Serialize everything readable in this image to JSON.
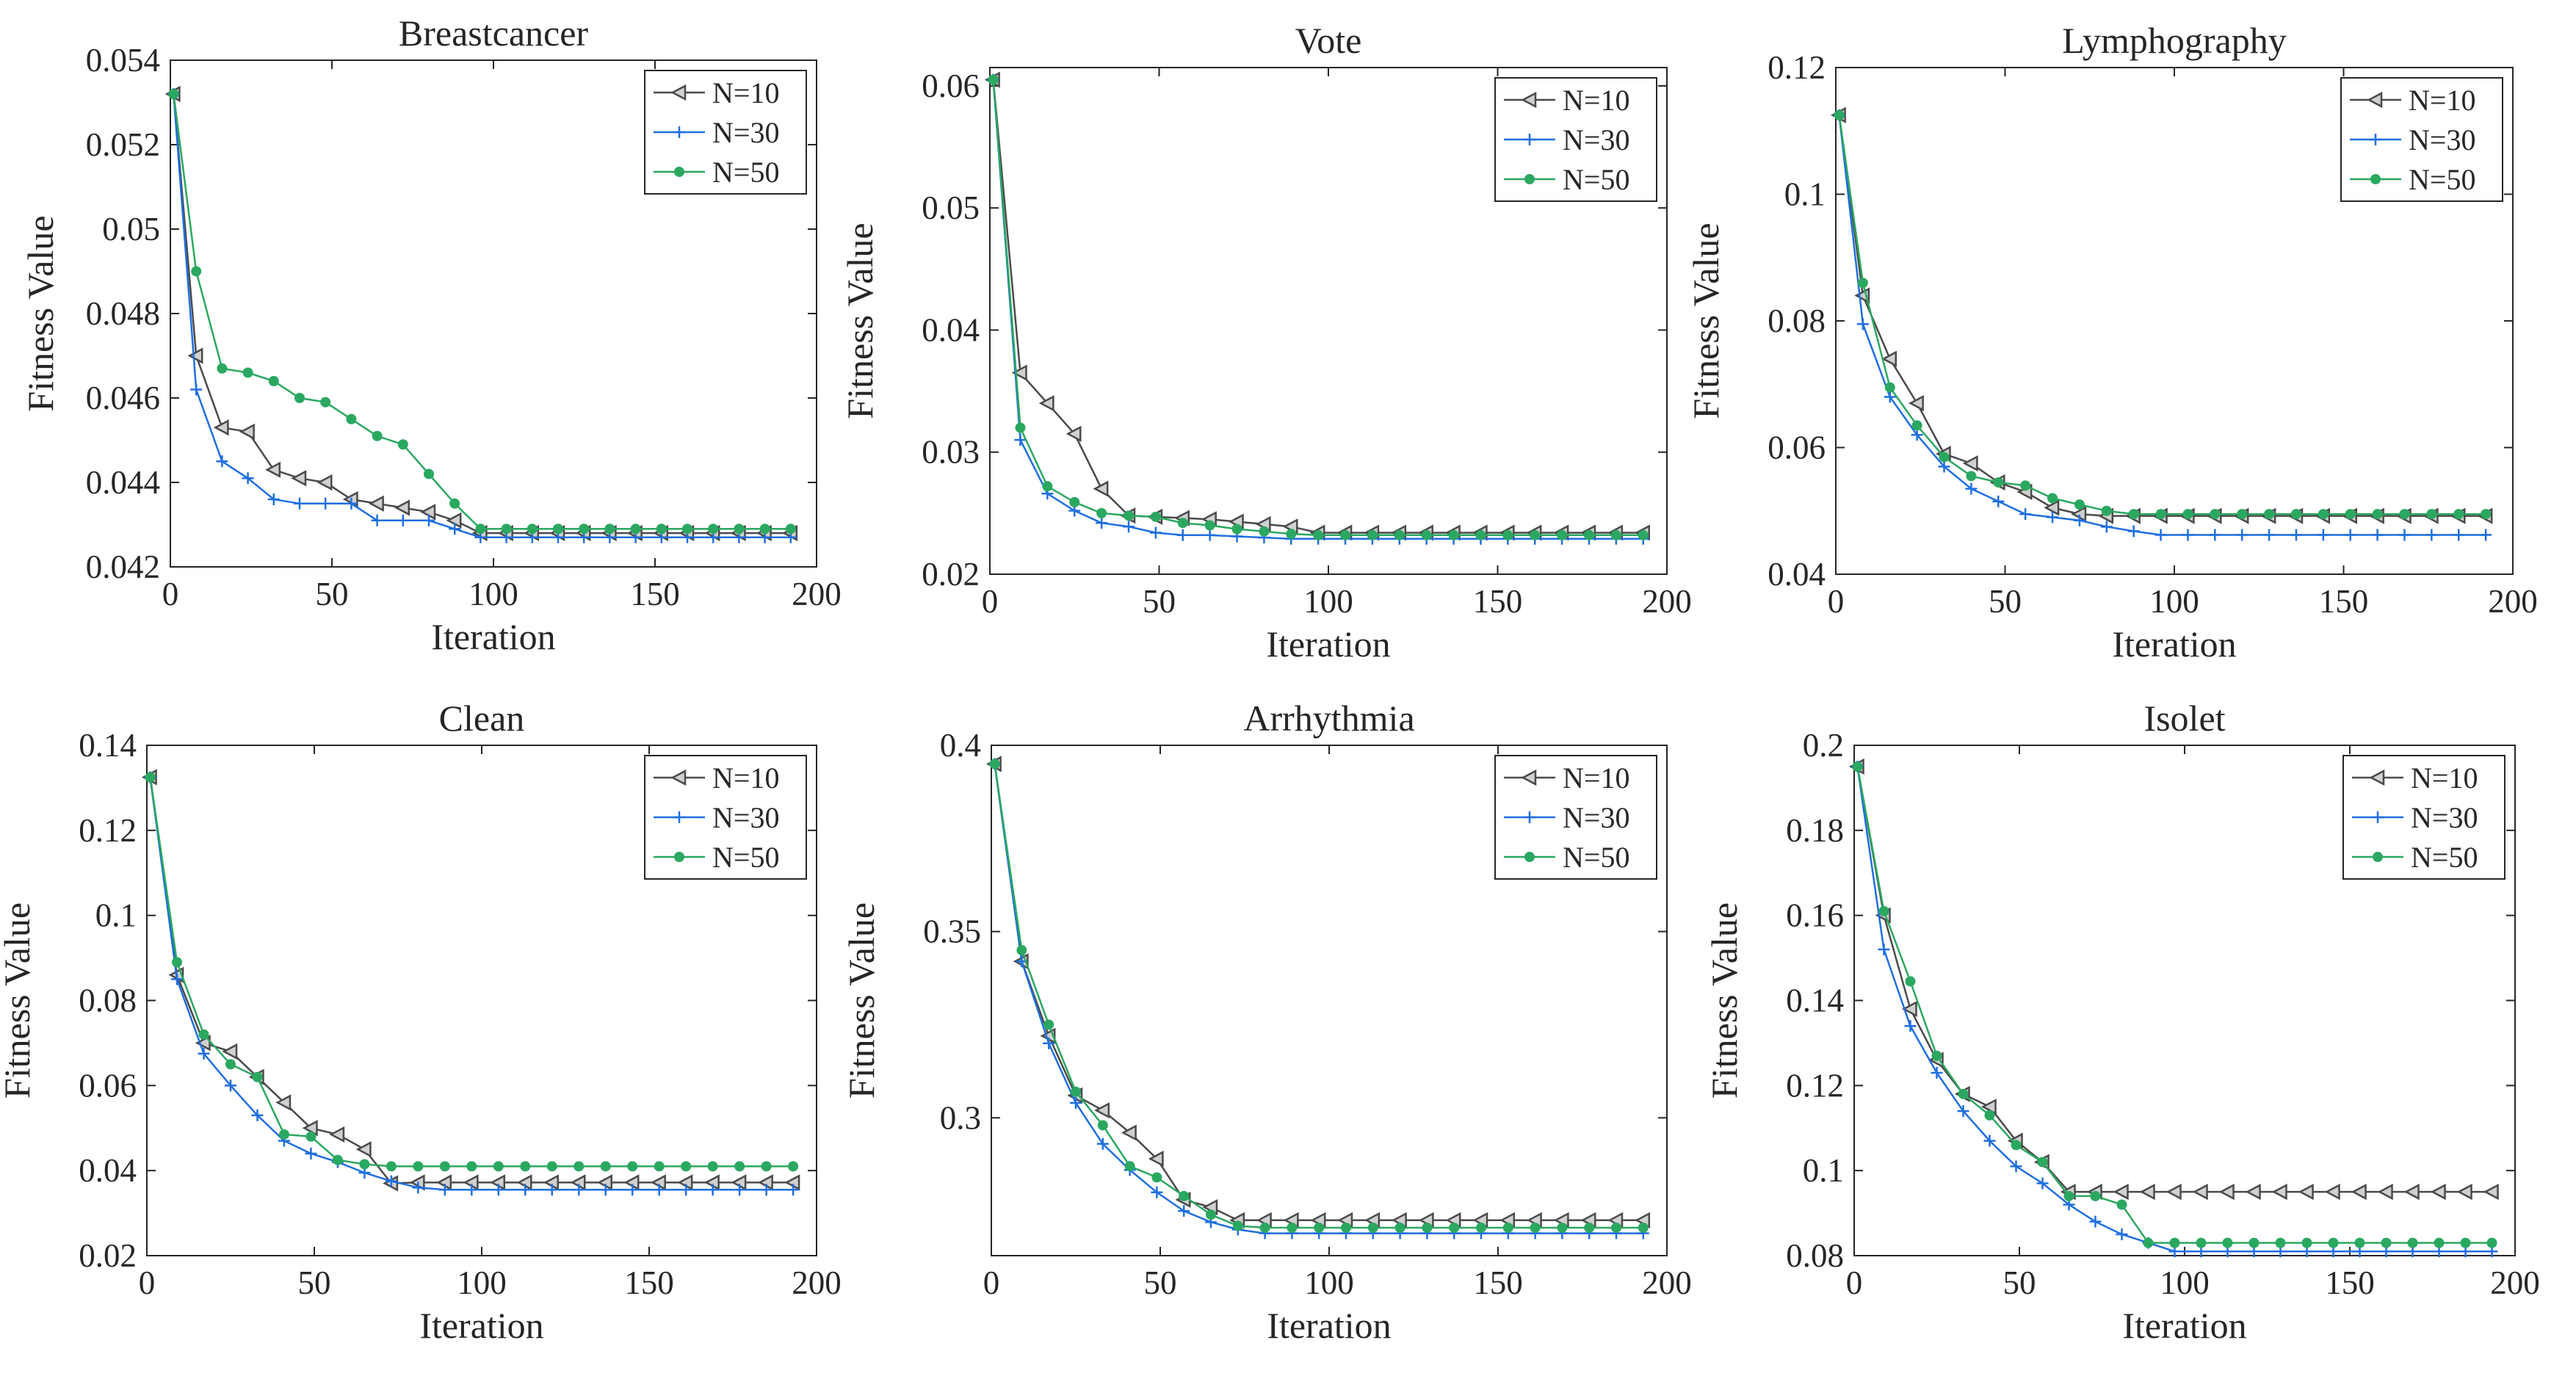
{
  "figure": {
    "layout": "2x3 grid of line charts"
  },
  "legend_position": "top-right",
  "series_styles": [
    {
      "name": "N=10",
      "color": "#4a4a4a",
      "marker": "triangle-left"
    },
    {
      "name": "N=30",
      "color": "#1f6fe0",
      "marker": "plus"
    },
    {
      "name": "N=50",
      "color": "#2aa860",
      "marker": "dot"
    }
  ],
  "chart_data": [
    {
      "type": "line",
      "title": "Breastcancer",
      "xlabel": "Iteration",
      "ylabel": "Fitness Value",
      "xlim": [
        0,
        200
      ],
      "ylim": [
        0.042,
        0.054
      ],
      "xticks": [
        0,
        50,
        100,
        150,
        200
      ],
      "xtick_labels": [
        "0",
        "50",
        "100",
        "150",
        "200"
      ],
      "yticks": [
        0.042,
        0.044,
        0.046,
        0.048,
        0.05,
        0.052,
        0.054
      ],
      "ytick_labels": [
        "0.042",
        "0.044",
        "0.046",
        "0.048",
        "0.05",
        "0.052",
        "0.054"
      ],
      "grid": false,
      "x": [
        1,
        8,
        16,
        24,
        32,
        40,
        48,
        56,
        64,
        72,
        80,
        88,
        96,
        104,
        112,
        120,
        128,
        136,
        144,
        152,
        160,
        168,
        176,
        184,
        192
      ],
      "series": [
        {
          "name": "N=10",
          "values": [
            0.0532,
            0.047,
            0.0453,
            0.0452,
            0.0443,
            0.0441,
            0.044,
            0.0436,
            0.0435,
            0.0434,
            0.0433,
            0.0431,
            0.0428,
            0.0428,
            0.0428,
            0.0428,
            0.0428,
            0.0428,
            0.0428,
            0.0428,
            0.0428,
            0.0428,
            0.0428,
            0.0428,
            0.0428
          ]
        },
        {
          "name": "N=30",
          "values": [
            0.0532,
            0.0462,
            0.0445,
            0.0441,
            0.0436,
            0.0435,
            0.0435,
            0.0435,
            0.0431,
            0.0431,
            0.0431,
            0.0429,
            0.0427,
            0.0427,
            0.0427,
            0.0427,
            0.0427,
            0.0427,
            0.0427,
            0.0427,
            0.0427,
            0.0427,
            0.0427,
            0.0427,
            0.0427
          ]
        },
        {
          "name": "N=50",
          "values": [
            0.0532,
            0.049,
            0.0467,
            0.0466,
            0.0464,
            0.046,
            0.0459,
            0.0455,
            0.0451,
            0.0449,
            0.0442,
            0.0435,
            0.0429,
            0.0429,
            0.0429,
            0.0429,
            0.0429,
            0.0429,
            0.0429,
            0.0429,
            0.0429,
            0.0429,
            0.0429,
            0.0429,
            0.0429
          ]
        }
      ]
    },
    {
      "type": "line",
      "title": "Vote",
      "xlabel": "Iteration",
      "ylabel": "Fitness Value",
      "xlim": [
        0,
        200
      ],
      "ylim": [
        0.02,
        0.0615
      ],
      "xticks": [
        0,
        50,
        100,
        150,
        200
      ],
      "xtick_labels": [
        "0",
        "50",
        "100",
        "150",
        "200"
      ],
      "yticks": [
        0.02,
        0.03,
        0.04,
        0.05,
        0.06
      ],
      "ytick_labels": [
        "0.02",
        "0.03",
        "0.04",
        "0.05",
        "0.06"
      ],
      "grid": false,
      "x": [
        1,
        9,
        17,
        25,
        33,
        41,
        49,
        57,
        65,
        73,
        81,
        89,
        97,
        105,
        113,
        121,
        129,
        137,
        145,
        153,
        161,
        169,
        177,
        185,
        193
      ],
      "series": [
        {
          "name": "N=10",
          "values": [
            0.0605,
            0.0365,
            0.034,
            0.0315,
            0.027,
            0.0248,
            0.0247,
            0.0246,
            0.0245,
            0.0243,
            0.0241,
            0.0239,
            0.0234,
            0.0234,
            0.0234,
            0.0234,
            0.0234,
            0.0234,
            0.0234,
            0.0234,
            0.0234,
            0.0234,
            0.0234,
            0.0234,
            0.0234
          ]
        },
        {
          "name": "N=30",
          "values": [
            0.0605,
            0.031,
            0.0266,
            0.0252,
            0.0242,
            0.0239,
            0.0234,
            0.0232,
            0.0232,
            0.0231,
            0.023,
            0.0229,
            0.0229,
            0.0229,
            0.0229,
            0.0229,
            0.0229,
            0.0229,
            0.0229,
            0.0229,
            0.0229,
            0.0229,
            0.0229,
            0.0229,
            0.0229
          ]
        },
        {
          "name": "N=50",
          "values": [
            0.0605,
            0.032,
            0.0272,
            0.0259,
            0.025,
            0.0248,
            0.0247,
            0.0242,
            0.024,
            0.0237,
            0.0235,
            0.0233,
            0.0232,
            0.0232,
            0.0232,
            0.0232,
            0.0232,
            0.0232,
            0.0232,
            0.0232,
            0.0232,
            0.0232,
            0.0232,
            0.0232,
            0.0232
          ]
        }
      ]
    },
    {
      "type": "line",
      "title": "Lymphography",
      "xlabel": "Iteration",
      "ylabel": "Fitness Value",
      "xlim": [
        0,
        200
      ],
      "ylim": [
        0.04,
        0.12
      ],
      "xticks": [
        0,
        50,
        100,
        150,
        200
      ],
      "xtick_labels": [
        "0",
        "50",
        "100",
        "150",
        "200"
      ],
      "yticks": [
        0.04,
        0.06,
        0.08,
        0.1,
        0.12
      ],
      "ytick_labels": [
        "0.04",
        "0.06",
        "0.08",
        "0.1",
        "0.12"
      ],
      "grid": false,
      "x": [
        1,
        8,
        16,
        24,
        32,
        40,
        48,
        56,
        64,
        72,
        80,
        88,
        96,
        104,
        112,
        120,
        128,
        136,
        144,
        152,
        160,
        168,
        176,
        184,
        192
      ],
      "series": [
        {
          "name": "N=10",
          "values": [
            0.1125,
            0.084,
            0.074,
            0.067,
            0.059,
            0.0575,
            0.0545,
            0.053,
            0.0505,
            0.0495,
            0.0492,
            0.0492,
            0.0492,
            0.0492,
            0.0492,
            0.0492,
            0.0492,
            0.0492,
            0.0492,
            0.0492,
            0.0492,
            0.0492,
            0.0492,
            0.0492,
            0.0492
          ]
        },
        {
          "name": "N=30",
          "values": [
            0.1125,
            0.0795,
            0.068,
            0.062,
            0.057,
            0.0535,
            0.0515,
            0.0495,
            0.049,
            0.0485,
            0.0475,
            0.0468,
            0.0462,
            0.0462,
            0.0462,
            0.0462,
            0.0462,
            0.0462,
            0.0462,
            0.0462,
            0.0462,
            0.0462,
            0.0462,
            0.0462,
            0.0462
          ]
        },
        {
          "name": "N=50",
          "values": [
            0.1125,
            0.086,
            0.0695,
            0.0635,
            0.0585,
            0.0555,
            0.0545,
            0.054,
            0.052,
            0.051,
            0.05,
            0.0495,
            0.0495,
            0.0495,
            0.0495,
            0.0495,
            0.0495,
            0.0495,
            0.0495,
            0.0495,
            0.0495,
            0.0495,
            0.0495,
            0.0495,
            0.0495
          ]
        }
      ]
    },
    {
      "type": "line",
      "title": "Clean",
      "xlabel": "Iteration",
      "ylabel": "Fitness Value",
      "xlim": [
        0,
        200
      ],
      "ylim": [
        0.02,
        0.14
      ],
      "xticks": [
        0,
        50,
        100,
        150,
        200
      ],
      "xtick_labels": [
        "0",
        "50",
        "100",
        "150",
        "200"
      ],
      "yticks": [
        0.02,
        0.04,
        0.06,
        0.08,
        0.1,
        0.12,
        0.14
      ],
      "ytick_labels": [
        "0.02",
        "0.04",
        "0.06",
        "0.08",
        "0.1",
        "0.12",
        "0.14"
      ],
      "grid": false,
      "x": [
        1,
        9,
        17,
        25,
        33,
        41,
        49,
        57,
        65,
        73,
        81,
        89,
        97,
        105,
        113,
        121,
        129,
        137,
        145,
        153,
        161,
        169,
        177,
        185,
        193
      ],
      "series": [
        {
          "name": "N=10",
          "values": [
            0.1325,
            0.086,
            0.07,
            0.068,
            0.062,
            0.056,
            0.05,
            0.0485,
            0.045,
            0.037,
            0.0372,
            0.0372,
            0.0372,
            0.0372,
            0.0372,
            0.0372,
            0.0372,
            0.0372,
            0.0372,
            0.0372,
            0.0372,
            0.0372,
            0.0372,
            0.0372,
            0.0372
          ]
        },
        {
          "name": "N=30",
          "values": [
            0.1325,
            0.085,
            0.0675,
            0.06,
            0.053,
            0.047,
            0.044,
            0.042,
            0.0395,
            0.0375,
            0.036,
            0.0355,
            0.0355,
            0.0355,
            0.0355,
            0.0355,
            0.0355,
            0.0355,
            0.0355,
            0.0355,
            0.0355,
            0.0355,
            0.0355,
            0.0355,
            0.0355
          ]
        },
        {
          "name": "N=50",
          "values": [
            0.1325,
            0.089,
            0.072,
            0.065,
            0.062,
            0.0485,
            0.048,
            0.0425,
            0.0415,
            0.041,
            0.041,
            0.041,
            0.041,
            0.041,
            0.041,
            0.041,
            0.041,
            0.041,
            0.041,
            0.041,
            0.041,
            0.041,
            0.041,
            0.041,
            0.041
          ]
        }
      ]
    },
    {
      "type": "line",
      "title": "Arrhythmia",
      "xlabel": "Iteration",
      "ylabel": "Fitness Value",
      "xlim": [
        0,
        200
      ],
      "ylim": [
        0.263,
        0.4
      ],
      "xticks": [
        0,
        50,
        100,
        150,
        200
      ],
      "xtick_labels": [
        "0",
        "50",
        "100",
        "150",
        "200"
      ],
      "yticks": [
        0.3,
        0.35,
        0.4
      ],
      "ytick_labels": [
        "0.3",
        "0.35",
        "0.4"
      ],
      "grid": false,
      "x": [
        1,
        9,
        17,
        25,
        33,
        41,
        49,
        57,
        65,
        73,
        81,
        89,
        97,
        105,
        113,
        121,
        129,
        137,
        145,
        153,
        161,
        169,
        177,
        185,
        193
      ],
      "series": [
        {
          "name": "N=10",
          "values": [
            0.395,
            0.342,
            0.322,
            0.306,
            0.302,
            0.296,
            0.289,
            0.278,
            0.276,
            0.2725,
            0.2725,
            0.2725,
            0.2725,
            0.2725,
            0.2725,
            0.2725,
            0.2725,
            0.2725,
            0.2725,
            0.2725,
            0.2725,
            0.2725,
            0.2725,
            0.2725,
            0.2725
          ]
        },
        {
          "name": "N=30",
          "values": [
            0.395,
            0.342,
            0.32,
            0.304,
            0.293,
            0.286,
            0.28,
            0.275,
            0.272,
            0.27,
            0.269,
            0.269,
            0.269,
            0.269,
            0.269,
            0.269,
            0.269,
            0.269,
            0.269,
            0.269,
            0.269,
            0.269,
            0.269,
            0.269,
            0.269
          ]
        },
        {
          "name": "N=50",
          "values": [
            0.395,
            0.345,
            0.325,
            0.307,
            0.298,
            0.287,
            0.284,
            0.279,
            0.274,
            0.271,
            0.2705,
            0.2705,
            0.2705,
            0.2705,
            0.2705,
            0.2705,
            0.2705,
            0.2705,
            0.2705,
            0.2705,
            0.2705,
            0.2705,
            0.2705,
            0.2705,
            0.2705
          ]
        }
      ]
    },
    {
      "type": "line",
      "title": "Isolet",
      "xlabel": "Iteration",
      "ylabel": "Fitness Value",
      "xlim": [
        0,
        200
      ],
      "ylim": [
        0.08,
        0.2
      ],
      "xticks": [
        0,
        50,
        100,
        150,
        200
      ],
      "xtick_labels": [
        "0",
        "50",
        "100",
        "150",
        "200"
      ],
      "yticks": [
        0.08,
        0.1,
        0.12,
        0.14,
        0.16,
        0.18,
        0.2
      ],
      "ytick_labels": [
        "0.08",
        "0.1",
        "0.12",
        "0.14",
        "0.16",
        "0.18",
        "0.2"
      ],
      "grid": false,
      "x": [
        1,
        9,
        17,
        25,
        33,
        41,
        49,
        57,
        65,
        73,
        81,
        89,
        97,
        105,
        113,
        121,
        129,
        137,
        145,
        153,
        161,
        169,
        177,
        185,
        193
      ],
      "series": [
        {
          "name": "N=10",
          "values": [
            0.195,
            0.16,
            0.138,
            0.126,
            0.118,
            0.115,
            0.107,
            0.102,
            0.095,
            0.095,
            0.095,
            0.095,
            0.095,
            0.095,
            0.095,
            0.095,
            0.095,
            0.095,
            0.095,
            0.095,
            0.095,
            0.095,
            0.095,
            0.095,
            0.095
          ]
        },
        {
          "name": "N=30",
          "values": [
            0.195,
            0.152,
            0.134,
            0.123,
            0.114,
            0.107,
            0.101,
            0.097,
            0.092,
            0.088,
            0.085,
            0.083,
            0.081,
            0.081,
            0.081,
            0.081,
            0.081,
            0.081,
            0.081,
            0.081,
            0.081,
            0.081,
            0.081,
            0.081,
            0.081
          ]
        },
        {
          "name": "N=50",
          "values": [
            0.195,
            0.161,
            0.1445,
            0.127,
            0.118,
            0.113,
            0.106,
            0.102,
            0.094,
            0.094,
            0.092,
            0.083,
            0.083,
            0.083,
            0.083,
            0.083,
            0.083,
            0.083,
            0.083,
            0.083,
            0.083,
            0.083,
            0.083,
            0.083,
            0.083
          ]
        }
      ]
    }
  ]
}
